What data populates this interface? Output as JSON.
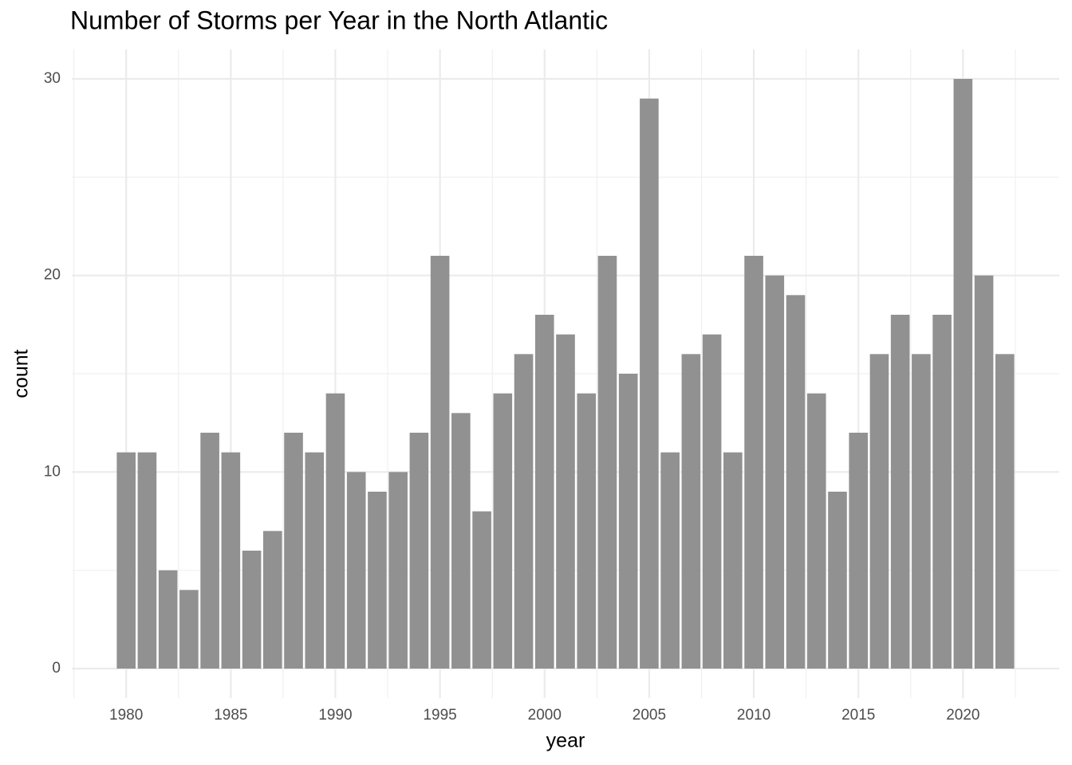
{
  "chart_data": {
    "type": "bar",
    "title": "Number of Storms per Year in the North Atlantic",
    "xlabel": "year",
    "ylabel": "count",
    "x": [
      1980,
      1981,
      1982,
      1983,
      1984,
      1985,
      1986,
      1987,
      1988,
      1989,
      1990,
      1991,
      1992,
      1993,
      1994,
      1995,
      1996,
      1997,
      1998,
      1999,
      2000,
      2001,
      2002,
      2003,
      2004,
      2005,
      2006,
      2007,
      2008,
      2009,
      2010,
      2011,
      2012,
      2013,
      2014,
      2015,
      2016,
      2017,
      2018,
      2019,
      2020,
      2021,
      2022
    ],
    "values": [
      11,
      11,
      5,
      4,
      12,
      11,
      6,
      7,
      12,
      11,
      14,
      10,
      9,
      10,
      12,
      21,
      13,
      8,
      14,
      16,
      18,
      17,
      14,
      21,
      15,
      29,
      11,
      16,
      17,
      11,
      21,
      20,
      19,
      14,
      9,
      12,
      16,
      18,
      16,
      18,
      30,
      20,
      16
    ],
    "bar_width": 0.9,
    "color": "#919191",
    "xlim": [
      1977.4,
      2024.6
    ],
    "xticks": [
      1980,
      1985,
      1990,
      1995,
      2000,
      2005,
      2010,
      2015,
      2020
    ],
    "xminor": [
      1977.5,
      1982.5,
      1987.5,
      1992.5,
      1997.5,
      2002.5,
      2007.5,
      2012.5,
      2017.5,
      2022.5
    ],
    "ylim": [
      -1.5,
      31.5
    ],
    "yticks": [
      0,
      10,
      20,
      30
    ],
    "yminor": [
      5,
      15,
      25
    ],
    "grid": true
  }
}
